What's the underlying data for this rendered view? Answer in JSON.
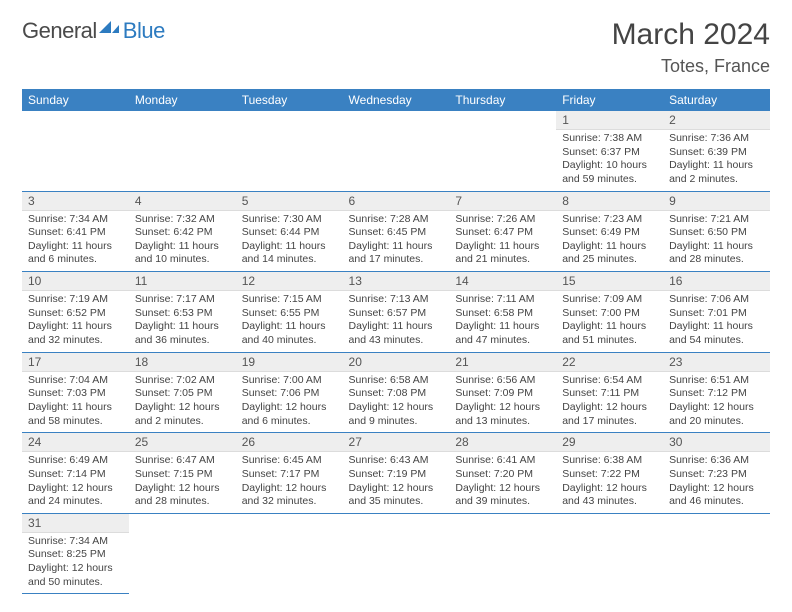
{
  "header": {
    "logo": {
      "text_a": "General",
      "text_b": "Blue"
    },
    "title": "March 2024",
    "location": "Totes, France"
  },
  "colors": {
    "header_bg": "#3a81c2",
    "header_fg": "#ffffff",
    "daynum_bg": "#eeeeee",
    "row_divider": "#3a81c2",
    "logo_blue": "#2d7bc0",
    "logo_dark": "#4a4a4a"
  },
  "weekdays": [
    "Sunday",
    "Monday",
    "Tuesday",
    "Wednesday",
    "Thursday",
    "Friday",
    "Saturday"
  ],
  "weeks": [
    [
      null,
      null,
      null,
      null,
      null,
      {
        "n": "1",
        "sr": "7:38 AM",
        "ss": "6:37 PM",
        "dl": "10 hours and 59 minutes."
      },
      {
        "n": "2",
        "sr": "7:36 AM",
        "ss": "6:39 PM",
        "dl": "11 hours and 2 minutes."
      }
    ],
    [
      {
        "n": "3",
        "sr": "7:34 AM",
        "ss": "6:41 PM",
        "dl": "11 hours and 6 minutes."
      },
      {
        "n": "4",
        "sr": "7:32 AM",
        "ss": "6:42 PM",
        "dl": "11 hours and 10 minutes."
      },
      {
        "n": "5",
        "sr": "7:30 AM",
        "ss": "6:44 PM",
        "dl": "11 hours and 14 minutes."
      },
      {
        "n": "6",
        "sr": "7:28 AM",
        "ss": "6:45 PM",
        "dl": "11 hours and 17 minutes."
      },
      {
        "n": "7",
        "sr": "7:26 AM",
        "ss": "6:47 PM",
        "dl": "11 hours and 21 minutes."
      },
      {
        "n": "8",
        "sr": "7:23 AM",
        "ss": "6:49 PM",
        "dl": "11 hours and 25 minutes."
      },
      {
        "n": "9",
        "sr": "7:21 AM",
        "ss": "6:50 PM",
        "dl": "11 hours and 28 minutes."
      }
    ],
    [
      {
        "n": "10",
        "sr": "7:19 AM",
        "ss": "6:52 PM",
        "dl": "11 hours and 32 minutes."
      },
      {
        "n": "11",
        "sr": "7:17 AM",
        "ss": "6:53 PM",
        "dl": "11 hours and 36 minutes."
      },
      {
        "n": "12",
        "sr": "7:15 AM",
        "ss": "6:55 PM",
        "dl": "11 hours and 40 minutes."
      },
      {
        "n": "13",
        "sr": "7:13 AM",
        "ss": "6:57 PM",
        "dl": "11 hours and 43 minutes."
      },
      {
        "n": "14",
        "sr": "7:11 AM",
        "ss": "6:58 PM",
        "dl": "11 hours and 47 minutes."
      },
      {
        "n": "15",
        "sr": "7:09 AM",
        "ss": "7:00 PM",
        "dl": "11 hours and 51 minutes."
      },
      {
        "n": "16",
        "sr": "7:06 AM",
        "ss": "7:01 PM",
        "dl": "11 hours and 54 minutes."
      }
    ],
    [
      {
        "n": "17",
        "sr": "7:04 AM",
        "ss": "7:03 PM",
        "dl": "11 hours and 58 minutes."
      },
      {
        "n": "18",
        "sr": "7:02 AM",
        "ss": "7:05 PM",
        "dl": "12 hours and 2 minutes."
      },
      {
        "n": "19",
        "sr": "7:00 AM",
        "ss": "7:06 PM",
        "dl": "12 hours and 6 minutes."
      },
      {
        "n": "20",
        "sr": "6:58 AM",
        "ss": "7:08 PM",
        "dl": "12 hours and 9 minutes."
      },
      {
        "n": "21",
        "sr": "6:56 AM",
        "ss": "7:09 PM",
        "dl": "12 hours and 13 minutes."
      },
      {
        "n": "22",
        "sr": "6:54 AM",
        "ss": "7:11 PM",
        "dl": "12 hours and 17 minutes."
      },
      {
        "n": "23",
        "sr": "6:51 AM",
        "ss": "7:12 PM",
        "dl": "12 hours and 20 minutes."
      }
    ],
    [
      {
        "n": "24",
        "sr": "6:49 AM",
        "ss": "7:14 PM",
        "dl": "12 hours and 24 minutes."
      },
      {
        "n": "25",
        "sr": "6:47 AM",
        "ss": "7:15 PM",
        "dl": "12 hours and 28 minutes."
      },
      {
        "n": "26",
        "sr": "6:45 AM",
        "ss": "7:17 PM",
        "dl": "12 hours and 32 minutes."
      },
      {
        "n": "27",
        "sr": "6:43 AM",
        "ss": "7:19 PM",
        "dl": "12 hours and 35 minutes."
      },
      {
        "n": "28",
        "sr": "6:41 AM",
        "ss": "7:20 PM",
        "dl": "12 hours and 39 minutes."
      },
      {
        "n": "29",
        "sr": "6:38 AM",
        "ss": "7:22 PM",
        "dl": "12 hours and 43 minutes."
      },
      {
        "n": "30",
        "sr": "6:36 AM",
        "ss": "7:23 PM",
        "dl": "12 hours and 46 minutes."
      }
    ],
    [
      {
        "n": "31",
        "sr": "7:34 AM",
        "ss": "8:25 PM",
        "dl": "12 hours and 50 minutes."
      },
      null,
      null,
      null,
      null,
      null,
      null
    ]
  ],
  "labels": {
    "sunrise": "Sunrise:",
    "sunset": "Sunset:",
    "daylight": "Daylight:"
  }
}
